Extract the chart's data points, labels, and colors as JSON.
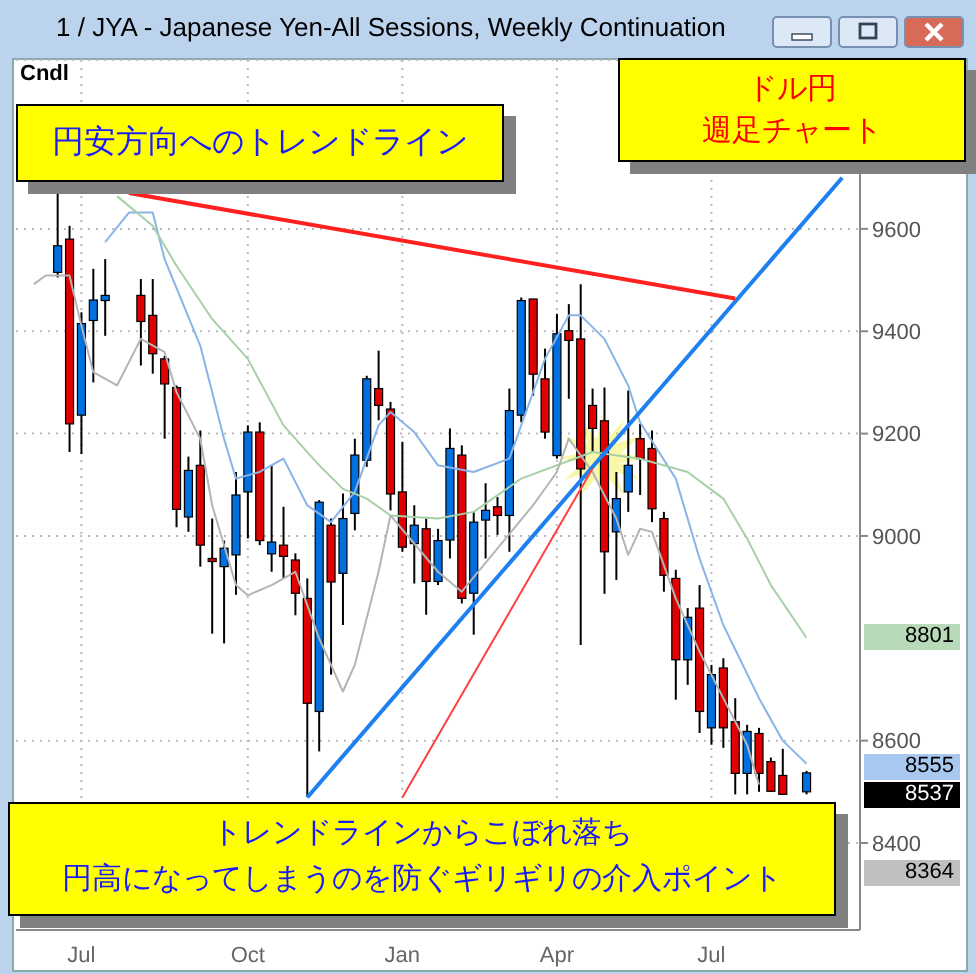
{
  "chart_data": {
    "type": "candlestick",
    "title": "1 / JYA - Japanese Yen-All Sessions, Weekly Continuation",
    "categories": [
      null,
      null,
      null,
      null,
      null,
      "Jul",
      null,
      null,
      null,
      null,
      null,
      null,
      null,
      null,
      null,
      null,
      null,
      null,
      null,
      "Oct",
      null,
      null,
      null,
      null,
      null,
      null,
      null,
      null,
      null,
      null,
      null,
      null,
      "Jan",
      null,
      null,
      null,
      null,
      null,
      null,
      null,
      null,
      null,
      null,
      null,
      null,
      "Apr",
      null,
      null,
      null,
      null,
      null,
      null,
      null,
      null,
      null,
      null,
      null,
      null,
      "Jul",
      null,
      null,
      null,
      null,
      null,
      null,
      null,
      null,
      null,
      null,
      null,
      null
    ],
    "ohlc": [
      null,
      null,
      null,
      [
        9515,
        9678,
        9505,
        9567
      ],
      [
        9580,
        9606,
        9164,
        9219
      ],
      [
        9236,
        9437,
        9160,
        9415
      ],
      [
        9421,
        9522,
        9300,
        9461
      ],
      [
        9460,
        9541,
        9391,
        9470
      ],
      null,
      null,
      [
        9470,
        9502,
        9333,
        9419
      ],
      [
        9431,
        9502,
        9317,
        9356
      ],
      [
        9346,
        9352,
        9190,
        9297
      ],
      [
        9290,
        9294,
        9017,
        9052
      ],
      [
        9037,
        9155,
        9008,
        9128
      ],
      [
        9138,
        9206,
        8940,
        8982
      ],
      [
        8956,
        9034,
        8809,
        8950
      ],
      [
        8940,
        8991,
        8790,
        8976
      ],
      [
        8963,
        9125,
        8885,
        9080
      ],
      [
        9086,
        9216,
        8995,
        9203
      ],
      [
        9203,
        9222,
        8982,
        8991
      ],
      [
        8965,
        9138,
        8930,
        8988
      ],
      [
        8982,
        9057,
        8917,
        8960
      ],
      [
        8953,
        8966,
        8845,
        8888
      ],
      [
        8878,
        8917,
        8490,
        8673
      ],
      [
        8657,
        9070,
        8579,
        9066
      ],
      [
        9021,
        9034,
        8729,
        8910
      ],
      [
        8927,
        9083,
        8826,
        9034
      ],
      [
        9044,
        9190,
        9011,
        9158
      ],
      [
        9148,
        9313,
        9135,
        9307
      ],
      [
        9288,
        9362,
        9226,
        9255
      ],
      [
        9248,
        9262,
        9050,
        9082
      ],
      [
        9086,
        9184,
        8969,
        8978
      ],
      [
        8985,
        9060,
        8907,
        9021
      ],
      [
        9014,
        9034,
        8846,
        8911
      ],
      [
        8911,
        9014,
        8904,
        8991
      ],
      [
        8992,
        9210,
        8956,
        9171
      ],
      [
        9158,
        9177,
        8868,
        8878
      ],
      [
        8888,
        9047,
        8807,
        9027
      ],
      [
        9031,
        9103,
        8956,
        9050
      ],
      [
        9057,
        9076,
        9002,
        9040
      ],
      [
        9040,
        9288,
        8969,
        9245
      ],
      [
        9236,
        9466,
        9222,
        9460
      ],
      [
        9463,
        9463,
        9274,
        9316
      ],
      [
        9307,
        9366,
        9190,
        9203
      ],
      [
        9157,
        9434,
        9151,
        9395
      ],
      [
        9401,
        9453,
        9268,
        9382
      ],
      [
        9385,
        9492,
        8787,
        9131
      ],
      [
        9255,
        9288,
        9164,
        9210
      ],
      [
        9225,
        9290,
        8887,
        8969
      ],
      [
        9008,
        9125,
        8914,
        9073
      ],
      [
        9086,
        9284,
        9047,
        9138
      ],
      [
        9190,
        9219,
        9080,
        9151
      ],
      [
        9171,
        9206,
        9027,
        9053
      ],
      [
        9034,
        9047,
        8891,
        8923
      ],
      [
        8917,
        8934,
        8680,
        8758
      ],
      [
        8758,
        8859,
        8709,
        8841
      ],
      [
        8859,
        8904,
        8615,
        8657
      ],
      [
        8625,
        8748,
        8592,
        8729
      ],
      [
        8742,
        8761,
        8586,
        8625
      ],
      [
        8637,
        8683,
        8495,
        8536
      ],
      [
        8536,
        8631,
        8495,
        8618
      ],
      [
        8614,
        8625,
        8500,
        8536
      ],
      [
        8559,
        8567,
        8500,
        8501
      ],
      [
        8532,
        8584,
        8495,
        8495
      ],
      null,
      [
        8500,
        8541,
        8495,
        8537
      ],
      null,
      null,
      null,
      null
    ],
    "colors": [
      null,
      null,
      null,
      "#0070e0",
      "#e00000",
      "#0070e0",
      "#0070e0",
      "#0070e0",
      null,
      null,
      "#e00000",
      "#e00000",
      "#e00000",
      "#e00000",
      "#0070e0",
      "#e00000",
      "#e00000",
      "#0070e0",
      "#0070e0",
      "#0070e0",
      "#e00000",
      "#0070e0",
      "#e00000",
      "#e00000",
      "#e00000",
      "#0070e0",
      "#e00000",
      "#0070e0",
      "#0070e0",
      "#0070e0",
      "#e00000",
      "#e00000",
      "#e00000",
      "#0070e0",
      "#e00000",
      "#0070e0",
      "#0070e0",
      "#e00000",
      "#0070e0",
      "#0070e0",
      "#e00000",
      "#0070e0",
      "#0070e0",
      "#e00000",
      "#e00000",
      "#0070e0",
      "#e00000",
      "#e00000",
      "#e00000",
      "#e00000",
      "#0070e0",
      "#0070e0",
      "#e00000",
      "#e00000",
      "#e00000",
      "#e00000",
      "#0070e0",
      "#e00000",
      "#0070e0",
      "#e00000",
      "#e00000",
      "#0070e0",
      "#e00000",
      "#e00000",
      "#e00000",
      null,
      "#0070e0",
      null,
      null,
      null,
      null
    ],
    "series": [
      {
        "type": "line",
        "color": "#8ab4e8",
        "values": [
          null,
          null,
          null,
          null,
          null,
          null,
          null,
          9574,
          null,
          9632,
          null,
          9632,
          9541,
          null,
          null,
          9372,
          null,
          9190,
          9112,
          null,
          9125,
          null,
          9151,
          null,
          9060,
          null,
          9027,
          null,
          9086,
          null,
          9216,
          9242,
          null,
          9203,
          null,
          9138,
          null,
          null,
          9125,
          null,
          null,
          9151,
          9216,
          null,
          9346,
          null,
          9431,
          9431,
          null,
          9385,
          null,
          9294,
          9222,
          null,
          null,
          9112,
          null,
          8956,
          null,
          8826,
          null,
          null,
          8683,
          null,
          8600,
          null,
          8555,
          null,
          null,
          null,
          null
        ]
      },
      {
        "type": "line",
        "color": "#a8d0a8",
        "values": [
          null,
          null,
          null,
          null,
          null,
          null,
          null,
          null,
          9664,
          null,
          null,
          9606,
          null,
          9528,
          null,
          null,
          9424,
          null,
          null,
          9346,
          null,
          null,
          9216,
          null,
          null,
          9138,
          null,
          9092,
          null,
          9073,
          null,
          9040,
          null,
          null,
          null,
          9034,
          null,
          null,
          9047,
          null,
          null,
          null,
          9112,
          null,
          null,
          null,
          null,
          null,
          9164,
          null,
          null,
          null,
          9151,
          null,
          null,
          null,
          9125,
          null,
          null,
          9073,
          null,
          8995,
          null,
          8904,
          null,
          null,
          8801,
          null,
          null,
          null,
          null
        ]
      },
      {
        "type": "line",
        "color": "#b4b4b4",
        "values": [
          null,
          9492,
          9509,
          null,
          9509,
          9411,
          9320,
          null,
          9294,
          null,
          9385,
          null,
          9359,
          9281,
          null,
          9190,
          9060,
          null,
          8904,
          8884,
          null,
          8904,
          null,
          8930,
          null,
          8800,
          null,
          8696,
          8748,
          null,
          8930,
          9040,
          null,
          null,
          null,
          8930,
          null,
          8891,
          null,
          null,
          null,
          null,
          null,
          9060,
          null,
          9125,
          9190,
          null,
          9125,
          null,
          9034,
          8963,
          9014,
          9008,
          null,
          8878,
          null,
          8774,
          null,
          8683,
          null,
          8592,
          8514,
          null,
          null,
          null,
          null,
          null,
          null,
          null,
          null
        ]
      },
      {
        "type": "line",
        "color": "#1e80f0",
        "values": [
          null,
          null,
          null,
          null,
          null,
          null,
          null,
          null,
          null,
          null,
          null,
          null,
          null,
          null,
          null,
          null,
          null,
          null,
          null,
          null,
          null,
          null,
          null,
          null,
          8489,
          null,
          null,
          null,
          null,
          null,
          null,
          null,
          null,
          null,
          null,
          null,
          null,
          null,
          null,
          null,
          null,
          null,
          null,
          null,
          null,
          null,
          null,
          null,
          null,
          null,
          null,
          null,
          null,
          null,
          null,
          null,
          null,
          null,
          null,
          null,
          null,
          null,
          null,
          null,
          null,
          null,
          null,
          null,
          null,
          9700,
          null
        ]
      },
      {
        "type": "line",
        "color": "#ff2020",
        "values": [
          null,
          null,
          null,
          null,
          null,
          null,
          null,
          null,
          null,
          9670,
          null,
          null,
          null,
          null,
          null,
          null,
          null,
          null,
          null,
          null,
          null,
          null,
          null,
          null,
          null,
          null,
          null,
          null,
          null,
          null,
          null,
          null,
          null,
          null,
          null,
          null,
          null,
          null,
          null,
          null,
          null,
          null,
          null,
          null,
          null,
          null,
          null,
          null,
          null,
          null,
          null,
          null,
          null,
          null,
          null,
          null,
          null,
          null,
          null,
          null,
          9464,
          null,
          null,
          null,
          null,
          null,
          null,
          null,
          null,
          null,
          null
        ]
      },
      {
        "type": "line",
        "color": "#ff4040",
        "values": [
          null,
          null,
          null,
          null,
          null,
          null,
          null,
          null,
          null,
          null,
          null,
          null,
          null,
          null,
          null,
          null,
          null,
          null,
          null,
          null,
          null,
          null,
          null,
          null,
          null,
          null,
          null,
          null,
          null,
          null,
          null,
          null,
          8489,
          null,
          null,
          null,
          null,
          null,
          null,
          null,
          null,
          null,
          null,
          null,
          null,
          null,
          null,
          null,
          9132,
          null,
          null,
          null,
          null,
          null,
          null,
          null,
          null,
          null,
          null,
          null,
          null,
          null,
          null,
          null,
          null,
          null,
          null,
          null,
          null,
          null,
          null
        ]
      }
    ],
    "ylim": [
      8230,
      9930
    ],
    "yticks": [
      8400,
      8600,
      9000,
      9200,
      9400,
      9600
    ],
    "grid": true,
    "annotations": [
      "Cndl",
      "円安方向へのトレンドライン",
      "ドル円",
      "週足チャート",
      "トレンドラインからこぼれ落ち",
      "円高になってしまうのを防ぐギリギリの介入ポイント",
      "8801",
      "8555",
      "8537",
      "8364"
    ]
  }
}
